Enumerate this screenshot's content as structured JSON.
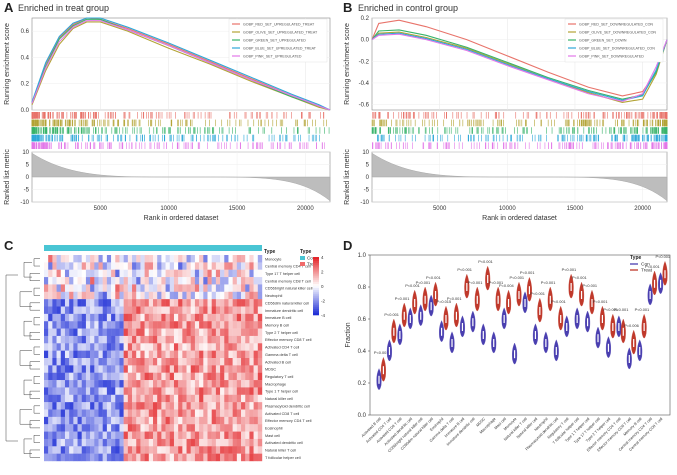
{
  "panels": {
    "A": {
      "letter": "A",
      "title": "Enriched in treat group"
    },
    "B": {
      "letter": "B",
      "title": "Enriched in control group"
    },
    "C": {
      "letter": "C"
    },
    "D": {
      "letter": "D"
    }
  },
  "colors": {
    "red": "#e8736a",
    "olive": "#b3a335",
    "green": "#39b36a",
    "blue": "#2ea8d8",
    "pink": "#e277e8",
    "heat_hi": "#e3262a",
    "heat_mid": "#ffffff",
    "heat_lo": "#1f2fd6",
    "con": "#4a3fb0",
    "treat": "#c0392b",
    "strip": "#49c5d4"
  },
  "chart_data": [
    {
      "type": "line",
      "panel": "A",
      "title": "Enriched in treat group",
      "ylabel_top": "Running enrichment score",
      "ylabel_bottom": "Ranked list metric",
      "xlabel": "Rank in ordered dataset",
      "ylim_top": [
        0,
        0.7
      ],
      "yticks_top": [
        "0.0",
        "0.2",
        "0.4",
        "0.6"
      ],
      "ylim_bottom": [
        -10,
        10
      ],
      "yticks_bottom": [
        "10",
        "5",
        "0",
        "-5",
        "-10"
      ],
      "xticks": [
        "5000",
        "10000",
        "15000",
        "20000"
      ],
      "xmax": 21800,
      "legend": [
        "GOBP_RED_SET_UPREGULATED_TREAT",
        "GOBP_OLIVE_SET_UPREGULATED_TREAT",
        "GOBP_GREEN_SET_UPREGULATED",
        "GOBP_BLUE_SET_UPREGULATED_TREAT",
        "GOBP_PINK_SET_UPREGULATED"
      ],
      "series": [
        {
          "name": "red",
          "x": [
            0,
            1000,
            2000,
            3000,
            4000,
            5000,
            7000,
            10000,
            13000,
            16000,
            19000,
            21000,
            21800
          ],
          "y": [
            0.05,
            0.35,
            0.55,
            0.65,
            0.7,
            0.69,
            0.62,
            0.5,
            0.37,
            0.24,
            0.11,
            0.03,
            0.0
          ]
        },
        {
          "name": "olive",
          "x": [
            0,
            1000,
            2000,
            3000,
            4000,
            5000,
            7000,
            10000,
            13000,
            16000,
            19000,
            21000,
            21800
          ],
          "y": [
            0.04,
            0.3,
            0.5,
            0.62,
            0.67,
            0.67,
            0.6,
            0.47,
            0.35,
            0.22,
            0.1,
            0.02,
            0.0
          ]
        },
        {
          "name": "green",
          "x": [
            0,
            1000,
            2000,
            3000,
            4000,
            5000,
            7000,
            10000,
            13000,
            16000,
            19000,
            21000,
            21800
          ],
          "y": [
            0.05,
            0.33,
            0.54,
            0.64,
            0.69,
            0.69,
            0.61,
            0.49,
            0.36,
            0.23,
            0.1,
            0.03,
            0.0
          ]
        },
        {
          "name": "blue",
          "x": [
            0,
            1000,
            2000,
            3000,
            4000,
            5000,
            7000,
            10000,
            13000,
            16000,
            19000,
            21000,
            21800
          ],
          "y": [
            0.06,
            0.36,
            0.56,
            0.66,
            0.7,
            0.7,
            0.63,
            0.51,
            0.38,
            0.25,
            0.12,
            0.04,
            0.0
          ]
        },
        {
          "name": "pink",
          "x": [
            0,
            1000,
            2000,
            3000,
            4000,
            5000,
            7000,
            10000,
            13000,
            16000,
            19000,
            21000,
            21800
          ],
          "y": [
            0.05,
            0.32,
            0.52,
            0.63,
            0.68,
            0.68,
            0.61,
            0.49,
            0.36,
            0.23,
            0.11,
            0.03,
            0.0
          ]
        }
      ]
    },
    {
      "type": "line",
      "panel": "B",
      "title": "Enriched in control group",
      "ylabel_top": "Running enrichment score",
      "ylabel_bottom": "Ranked list metric",
      "xlabel": "Rank in ordered dataset",
      "ylim_top": [
        -0.65,
        0.2
      ],
      "yticks_top": [
        "0.2",
        "0.0",
        "-0.2",
        "-0.4",
        "-0.6"
      ],
      "ylim_bottom": [
        -10,
        10
      ],
      "yticks_bottom": [
        "10",
        "5",
        "0",
        "-5",
        "-10"
      ],
      "xticks": [
        "5000",
        "10000",
        "15000",
        "20000"
      ],
      "xmax": 21800,
      "legend": [
        "GOBP_RED_SET_DOWNREGULATED_CON",
        "GOBP_OLIVE_SET_DOWNREGULATED_CON",
        "GOBP_GREEN_SET_DOWN",
        "GOBP_BLUE_SET_DOWNREGULATED_CON",
        "GOBP_PINK_SET_DOWNREGULATED"
      ],
      "series": [
        {
          "name": "red",
          "x": [
            0,
            500,
            2000,
            4000,
            7000,
            10000,
            13000,
            16000,
            18500,
            20000,
            21000,
            21800
          ],
          "y": [
            0.0,
            0.15,
            0.18,
            0.12,
            0.0,
            -0.15,
            -0.3,
            -0.44,
            -0.52,
            -0.48,
            -0.3,
            0.0
          ]
        },
        {
          "name": "olive",
          "x": [
            0,
            500,
            2000,
            4000,
            7000,
            10000,
            13000,
            16000,
            18500,
            20000,
            21000,
            21800
          ],
          "y": [
            0.0,
            0.06,
            0.07,
            0.02,
            -0.08,
            -0.22,
            -0.36,
            -0.49,
            -0.58,
            -0.55,
            -0.32,
            0.0
          ]
        },
        {
          "name": "green",
          "x": [
            0,
            500,
            2000,
            4000,
            7000,
            10000,
            13000,
            16000,
            18500,
            20000,
            21000,
            21800
          ],
          "y": [
            0.0,
            0.08,
            0.09,
            0.04,
            -0.07,
            -0.21,
            -0.35,
            -0.47,
            -0.55,
            -0.51,
            -0.3,
            0.0
          ]
        },
        {
          "name": "blue",
          "x": [
            0,
            500,
            2000,
            4000,
            7000,
            10000,
            13000,
            16000,
            18500,
            20000,
            21000,
            21800
          ],
          "y": [
            0.0,
            0.05,
            0.06,
            0.01,
            -0.09,
            -0.23,
            -0.36,
            -0.48,
            -0.56,
            -0.52,
            -0.28,
            0.0
          ]
        },
        {
          "name": "pink",
          "x": [
            0,
            500,
            2000,
            4000,
            7000,
            10000,
            13000,
            16000,
            18500,
            20000,
            21000,
            21800
          ],
          "y": [
            0.0,
            0.04,
            0.05,
            0.0,
            -0.1,
            -0.24,
            -0.37,
            -0.5,
            -0.57,
            -0.5,
            -0.25,
            0.0
          ]
        }
      ]
    },
    {
      "type": "heatmap",
      "panel": "C",
      "legend_title": "Type",
      "legend_groups": [
        "Con",
        "Treat"
      ],
      "color_scale": [
        "4",
        "2",
        "0",
        "-2",
        "-4"
      ],
      "rows": [
        "Monocyte",
        "Central memory CD4 T cell",
        "Type 17 T helper cell",
        "Central memory CD8 T cell",
        "CD56bright natural killer cell",
        "Neutrophil",
        "CD56dim natural killer cell",
        "Immature dendritic cell",
        "Immature B cell",
        "Memory B cell",
        "Type 2 T helper cell",
        "Effector memory CD8 T cell",
        "Activated CD4 T cell",
        "Gamma delta T cell",
        "Activated B cell",
        "MDSC",
        "Regulatory T cell",
        "Macrophage",
        "Type 1 T helper cell",
        "Natural killer cell",
        "Plasmacytoid dendritic cell",
        "Activated CD8 T cell",
        "Effector memory CD4 T cell",
        "Eosinophil",
        "Mast cell",
        "Activated dendritic cell",
        "Natural killer T cell",
        "T follicular helper cell"
      ],
      "n_con": 19,
      "n_treat": 33
    },
    {
      "type": "violin",
      "panel": "D",
      "ylabel": "Fraction",
      "ylim": [
        0,
        1.0
      ],
      "yticks": [
        "0.0",
        "0.2",
        "0.4",
        "0.6",
        "0.8",
        "1.0"
      ],
      "legend_title": "Type",
      "legend": [
        "Con",
        "Treat"
      ],
      "categories": [
        "Activated B cell",
        "Activated CD4 T cell",
        "Activated CD8 T cell",
        "Activated dendritic cell",
        "CD56bright natural killer cell",
        "CD56dim natural killer cell",
        "Eosinophil",
        "Gamma delta T cell",
        "Immature B cell",
        "Immature dendritic cell",
        "MDSC",
        "Macrophage",
        "Mast cell",
        "Monocyte",
        "Natural killer T cell",
        "Natural killer cell",
        "Neutrophil",
        "Plasmacytoid dendritic cell",
        "Regulatory T cell",
        "T follicular helper cell",
        "Type 1 T helper cell",
        "Type 17 T helper cell",
        "Type 2 T helper cell",
        "Effector memory CD4 T cell",
        "Effector memory CD8 T cell",
        "Memory B cell",
        "Central memory CD4 T cell",
        "Central memory CD8 T cell"
      ],
      "con": [
        0.22,
        0.4,
        0.5,
        0.6,
        0.62,
        0.68,
        0.52,
        0.45,
        0.55,
        0.58,
        0.5,
        0.45,
        0.6,
        0.38,
        0.7,
        0.5,
        0.45,
        0.4,
        0.55,
        0.6,
        0.58,
        0.48,
        0.42,
        0.55,
        0.35,
        0.4,
        0.75,
        0.82
      ],
      "treat": [
        0.28,
        0.52,
        0.62,
        0.7,
        0.72,
        0.75,
        0.6,
        0.62,
        0.8,
        0.72,
        0.85,
        0.72,
        0.7,
        0.75,
        0.78,
        0.65,
        0.72,
        0.6,
        0.8,
        0.75,
        0.7,
        0.6,
        0.55,
        0.52,
        0.45,
        0.55,
        0.82,
        0.88
      ],
      "pvalues": [
        "P<0.001",
        "P<0.001",
        "P<0.001",
        "P<0.001",
        "P<0.001",
        "P<0.001",
        "P=0.015",
        "P<0.001",
        "P<0.001",
        "P<0.001",
        "P<0.001",
        "P<0.001",
        "P=0.004",
        "P<0.001",
        "P<0.001",
        "P<0.001",
        "P<0.001",
        "P<0.001",
        "P<0.001",
        "P<0.001",
        "P<0.001",
        "P=0.001",
        "P<0.001",
        "P<0.001",
        "P=0.006",
        "P<0.001",
        "P<0.001",
        "P<0.001"
      ]
    }
  ]
}
